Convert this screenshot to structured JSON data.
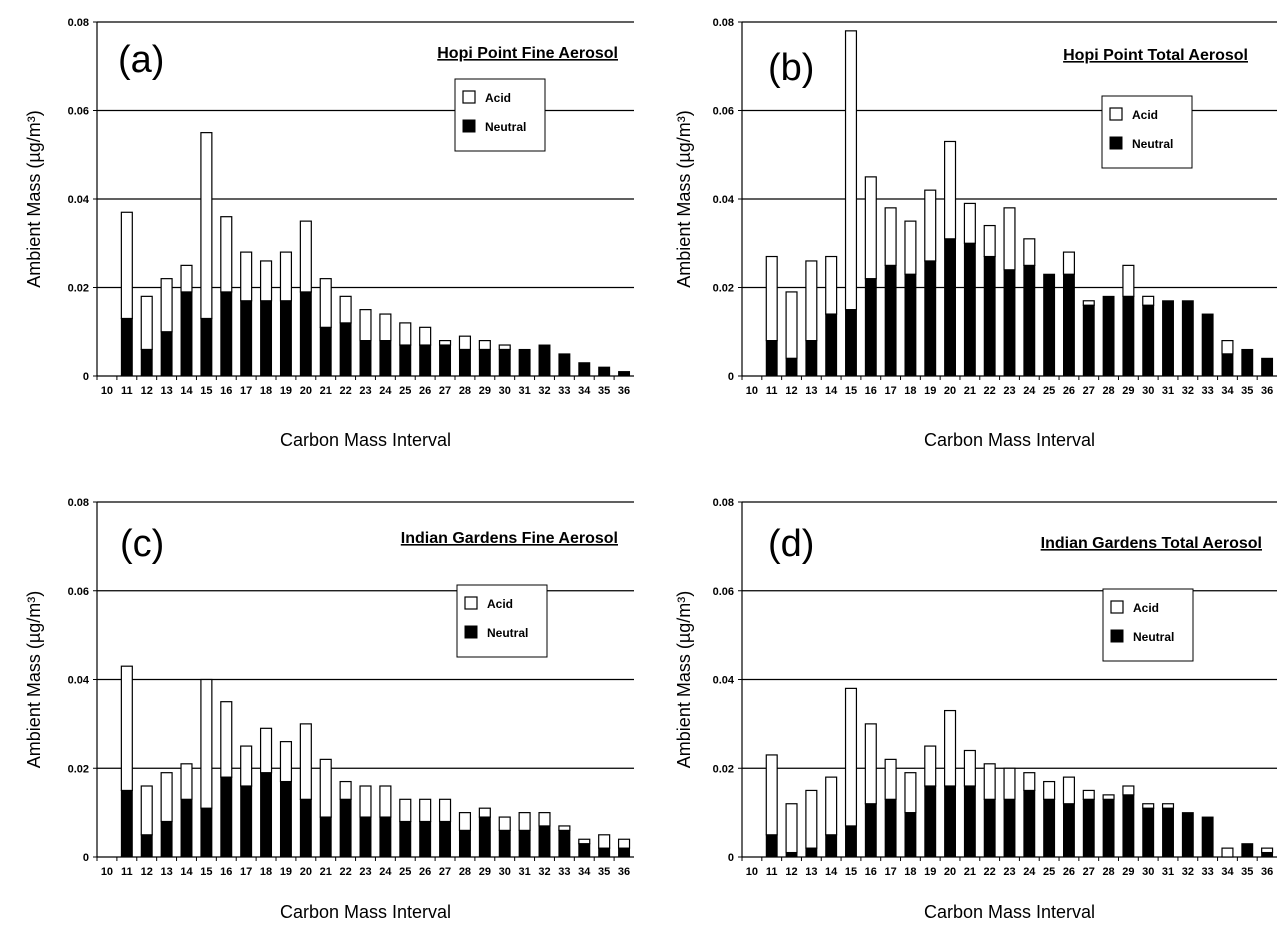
{
  "chart_data": [
    {
      "type": "bar",
      "stacked": true,
      "panel_label": "(a)",
      "title": "Hopi Point Fine Aerosol",
      "xlabel": "Carbon Mass Interval",
      "ylabel": "Ambient Mass (µg/m³)",
      "ylim": [
        0,
        0.08
      ],
      "yticks": [
        "0",
        "0.02",
        "0.04",
        "0.06",
        "0.08"
      ],
      "categories": [
        "10",
        "11",
        "12",
        "13",
        "14",
        "15",
        "16",
        "17",
        "18",
        "19",
        "20",
        "21",
        "22",
        "23",
        "24",
        "25",
        "26",
        "27",
        "28",
        "29",
        "30",
        "31",
        "32",
        "33",
        "34",
        "35",
        "36"
      ],
      "legend": [
        "Acid",
        "Neutral"
      ],
      "series": [
        {
          "name": "Neutral",
          "values": [
            null,
            0.013,
            0.006,
            0.01,
            0.019,
            0.013,
            0.019,
            0.017,
            0.017,
            0.017,
            0.019,
            0.011,
            0.012,
            0.008,
            0.008,
            0.007,
            0.007,
            0.007,
            0.006,
            0.006,
            0.006,
            0.006,
            0.007,
            0.005,
            0.003,
            0.002,
            0.001
          ]
        },
        {
          "name": "Acid",
          "values": [
            null,
            0.024,
            0.012,
            0.012,
            0.006,
            0.042,
            0.017,
            0.011,
            0.009,
            0.011,
            0.016,
            0.011,
            0.006,
            0.007,
            0.006,
            0.005,
            0.004,
            0.001,
            0.003,
            0.002,
            0.001,
            0,
            0,
            0,
            0,
            0,
            0
          ]
        }
      ]
    },
    {
      "type": "bar",
      "stacked": true,
      "panel_label": "(b)",
      "title": "Hopi Point Total Aerosol",
      "xlabel": "Carbon Mass Interval",
      "ylabel": "Ambient Mass (µg/m³)",
      "ylim": [
        0,
        0.08
      ],
      "yticks": [
        "0",
        "0.02",
        "0.04",
        "0.06",
        "0.08"
      ],
      "categories": [
        "10",
        "11",
        "12",
        "13",
        "14",
        "15",
        "16",
        "17",
        "18",
        "19",
        "20",
        "21",
        "22",
        "23",
        "24",
        "25",
        "26",
        "27",
        "28",
        "29",
        "30",
        "31",
        "32",
        "33",
        "34",
        "35",
        "36"
      ],
      "legend": [
        "Acid",
        "Neutral"
      ],
      "series": [
        {
          "name": "Neutral",
          "values": [
            null,
            0.008,
            0.004,
            0.008,
            0.014,
            0.015,
            0.022,
            0.025,
            0.023,
            0.026,
            0.031,
            0.03,
            0.027,
            0.024,
            0.025,
            0.023,
            0.023,
            0.016,
            0.018,
            0.018,
            0.016,
            0.017,
            0.017,
            0.014,
            0.005,
            0.006,
            0.004
          ]
        },
        {
          "name": "Acid",
          "values": [
            null,
            0.019,
            0.015,
            0.018,
            0.013,
            0.063,
            0.023,
            0.013,
            0.012,
            0.016,
            0.022,
            0.009,
            0.007,
            0.014,
            0.006,
            0,
            0.005,
            0.001,
            0,
            0.007,
            0.002,
            0,
            0,
            0,
            0.003,
            0,
            0
          ]
        }
      ]
    },
    {
      "type": "bar",
      "stacked": true,
      "panel_label": "(c)",
      "title": "Indian Gardens Fine Aerosol",
      "xlabel": "Carbon Mass Interval",
      "ylabel": "Ambient Mass (µg/m³)",
      "ylim": [
        0,
        0.08
      ],
      "yticks": [
        "0",
        "0.02",
        "0.04",
        "0.06",
        "0.08"
      ],
      "categories": [
        "10",
        "11",
        "12",
        "13",
        "14",
        "15",
        "16",
        "17",
        "18",
        "19",
        "20",
        "21",
        "22",
        "23",
        "24",
        "25",
        "26",
        "27",
        "28",
        "29",
        "30",
        "31",
        "32",
        "33",
        "34",
        "35",
        "36"
      ],
      "legend": [
        "Acid",
        "Neutral"
      ],
      "series": [
        {
          "name": "Neutral",
          "values": [
            null,
            0.015,
            0.005,
            0.008,
            0.013,
            0.011,
            0.018,
            0.016,
            0.019,
            0.017,
            0.013,
            0.009,
            0.013,
            0.009,
            0.009,
            0.008,
            0.008,
            0.008,
            0.006,
            0.009,
            0.006,
            0.006,
            0.007,
            0.006,
            0.003,
            0.002,
            0.002
          ]
        },
        {
          "name": "Acid",
          "values": [
            null,
            0.028,
            0.011,
            0.011,
            0.008,
            0.029,
            0.017,
            0.009,
            0.01,
            0.009,
            0.017,
            0.013,
            0.004,
            0.007,
            0.007,
            0.005,
            0.005,
            0.005,
            0.004,
            0.002,
            0.003,
            0.004,
            0.003,
            0.001,
            0.001,
            0.003,
            0.002
          ]
        }
      ]
    },
    {
      "type": "bar",
      "stacked": true,
      "panel_label": "(d)",
      "title": "Indian Gardens Total Aerosol",
      "xlabel": "Carbon Mass Interval",
      "ylabel": "Ambient Mass (µg/m³)",
      "ylim": [
        0,
        0.08
      ],
      "yticks": [
        "0",
        "0.02",
        "0.04",
        "0.06",
        "0.08"
      ],
      "categories": [
        "10",
        "11",
        "12",
        "13",
        "14",
        "15",
        "16",
        "17",
        "18",
        "19",
        "20",
        "21",
        "22",
        "23",
        "24",
        "25",
        "26",
        "27",
        "28",
        "29",
        "30",
        "31",
        "32",
        "33",
        "34",
        "35",
        "36"
      ],
      "legend": [
        "Acid",
        "Neutral"
      ],
      "series": [
        {
          "name": "Neutral",
          "values": [
            null,
            0.005,
            0.001,
            0.002,
            0.005,
            0.007,
            0.012,
            0.013,
            0.01,
            0.016,
            0.016,
            0.016,
            0.013,
            0.013,
            0.015,
            0.013,
            0.012,
            0.013,
            0.013,
            0.014,
            0.011,
            0.011,
            0.01,
            0.009,
            0,
            0.003,
            0.001
          ]
        },
        {
          "name": "Acid",
          "values": [
            null,
            0.018,
            0.011,
            0.013,
            0.013,
            0.031,
            0.018,
            0.009,
            0.009,
            0.009,
            0.017,
            0.008,
            0.008,
            0.007,
            0.004,
            0.004,
            0.006,
            0.002,
            0.001,
            0.002,
            0.001,
            0.001,
            0,
            0,
            0.002,
            0,
            0.001
          ]
        }
      ]
    }
  ]
}
